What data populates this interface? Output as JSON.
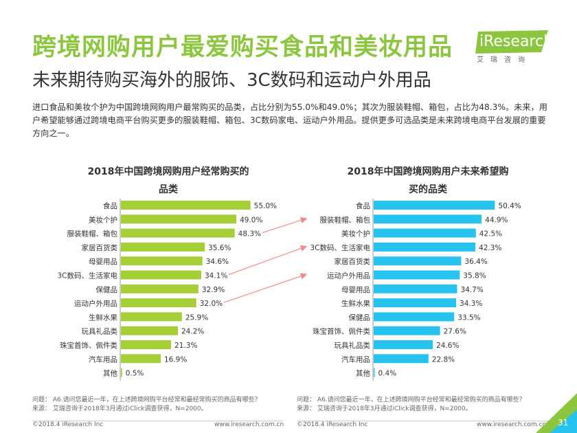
{
  "title": "跨境网购用户最爱购买食品和美妆用品",
  "subtitle": "未来期待购买海外的服饰、3C数码和运动户外用品",
  "intro": "进口食品和美妆个护为中国跨境网购用户最常购买的品类，占比分别为55.0%和49.0%；其次为服装鞋帽、箱包，占比为48.3%。未来，用户希望能够通过跨境电商平台购买更多的服装鞋帽、箱包、3C数码家电、运动户外用品。提供更多可选品类是未来跨境电商平台发展的重要方向之一。",
  "logo": {
    "text": "iResearch",
    "sub": "艾瑞咨询"
  },
  "colors": {
    "green": "#A6CF37",
    "blue": "#27C3EE",
    "arrow": "#F08C8C",
    "title": "#8CC63F"
  },
  "chart_data": [
    {
      "type": "bar",
      "orientation": "horizontal",
      "title_line1": "2018年中国跨境网购用户经常购买的",
      "title_line2": "品类",
      "categories": [
        "食品",
        "美妆个护",
        "服装鞋帽、箱包",
        "家居百货类",
        "母婴用品",
        "3C数码、生活家电",
        "保健品",
        "运动户外用品",
        "生鲜水果",
        "玩具礼品类",
        "珠宝首饰、佩件类",
        "汽车用品",
        "其他"
      ],
      "values": [
        55.0,
        49.0,
        48.3,
        35.6,
        34.6,
        34.1,
        32.9,
        32.0,
        25.9,
        24.2,
        21.3,
        16.9,
        0.5
      ],
      "labels": [
        "55.0%",
        "49.0%",
        "48.3%",
        "35.6%",
        "34.6%",
        "34.1%",
        "32.9%",
        "32.0%",
        "25.9%",
        "24.2%",
        "21.3%",
        "16.9%",
        "0.5%"
      ],
      "color": "#A6CF37"
    },
    {
      "type": "bar",
      "orientation": "horizontal",
      "title_line1": "2018年中国跨境网购用户未来希望购",
      "title_line2": "买的品类",
      "categories": [
        "食品",
        "服装鞋帽、箱包",
        "美妆个护",
        "3C数码、生活家电",
        "家居百货类",
        "运动户外用品",
        "母婴用品",
        "生鲜水果",
        "保健品",
        "珠宝首饰、佩件类",
        "玩具礼品类",
        "汽车用品",
        "其他"
      ],
      "values": [
        50.4,
        44.9,
        42.5,
        42.3,
        36.4,
        35.8,
        34.7,
        34.3,
        33.5,
        27.6,
        24.6,
        22.8,
        0.4
      ],
      "labels": [
        "50.4%",
        "44.9%",
        "42.5%",
        "42.3%",
        "36.4%",
        "35.8%",
        "34.7%",
        "34.3%",
        "33.5%",
        "27.6%",
        "24.6%",
        "22.8%",
        "0.4%"
      ],
      "color": "#27C3EE"
    }
  ],
  "footnote_left": {
    "question": "问题： A6.请问您最近一年，在上述跨境网购平台经常和最经常购买的商品有哪些？",
    "source": "来源： 艾瑞咨询于2018年3月通过iClick调查获得，N=2000。"
  },
  "footnote_right": {
    "question": "问题： A6.请问您最近一年，在上述跨境网购平台经常和最经常购买的商品有哪些？",
    "source": "来源： 艾瑞咨询于2018年3月通过iClick调查获得，N=2000。"
  },
  "footer": {
    "copyright_left": "©2018.4 iResearch Inc",
    "url_left": "www.iresearch.com.cn",
    "copyright_right": "©2018.4 iResearch Inc",
    "url_right": "www.iresearch.com.cn",
    "page": "31"
  }
}
